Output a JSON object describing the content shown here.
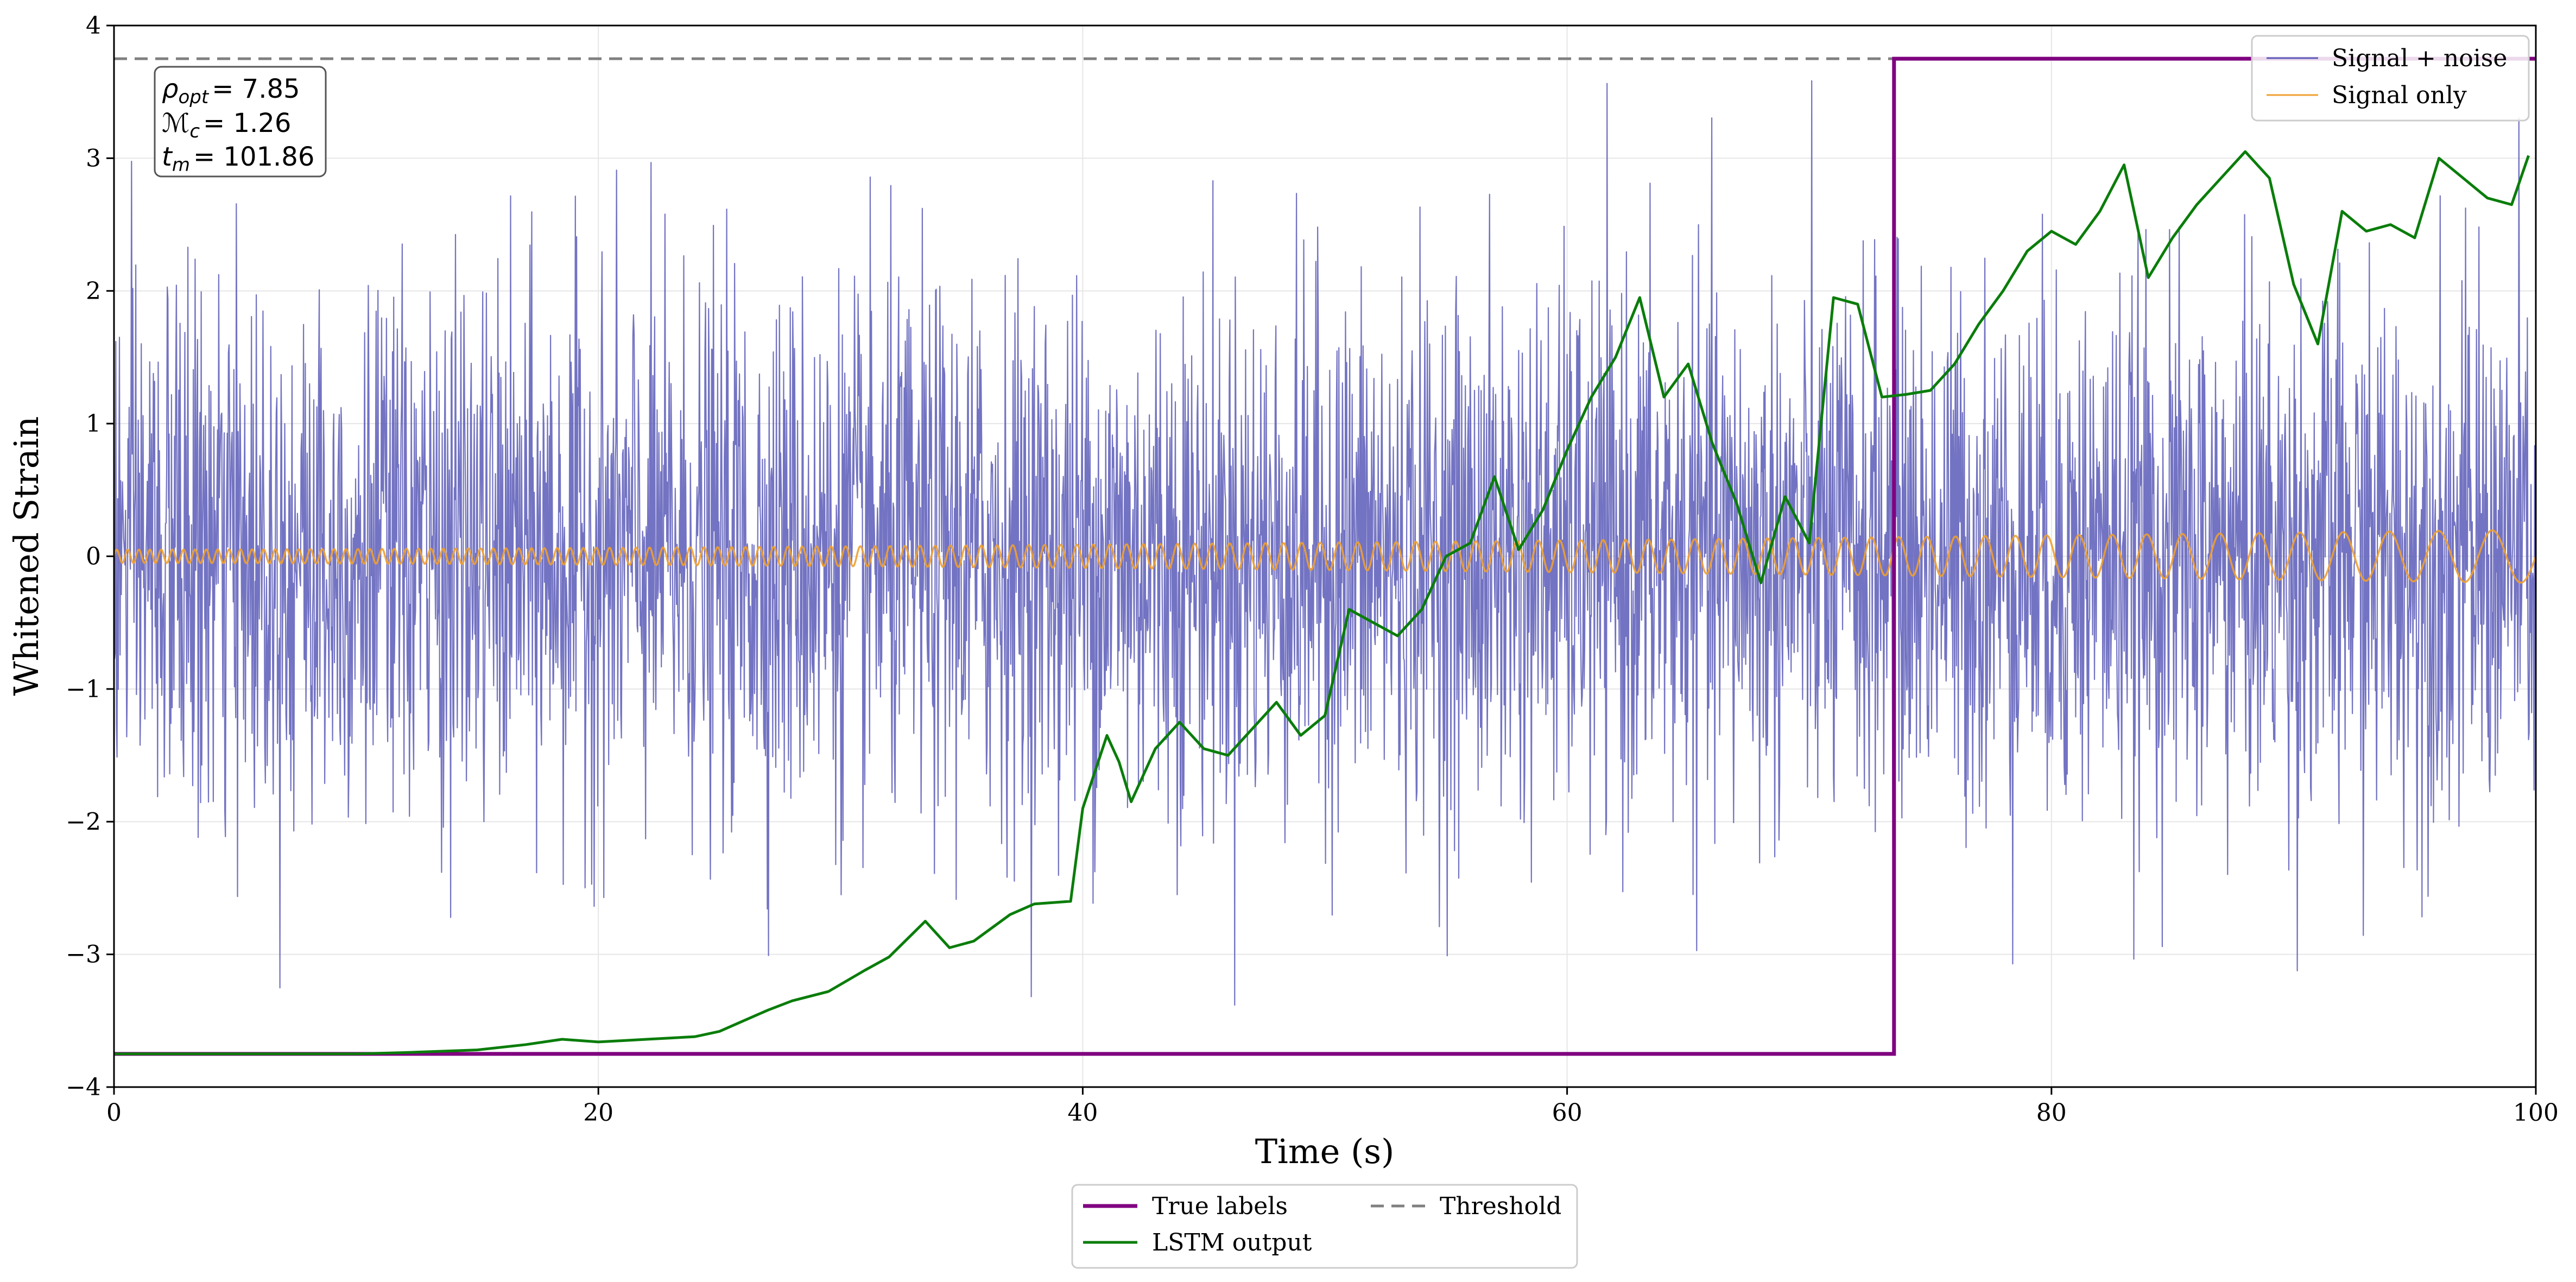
{
  "chart_data": {
    "type": "line",
    "title": "",
    "xlabel": "Time (s)",
    "ylabel": "Whitened Strain",
    "xlim": [
      0,
      100
    ],
    "ylim": [
      -4,
      4
    ],
    "x_ticks": [
      0,
      20,
      40,
      60,
      80,
      100
    ],
    "y_ticks": [
      -4,
      -3,
      -2,
      -1,
      0,
      1,
      2,
      3,
      4
    ],
    "x_tick_labels": [
      "0",
      "20",
      "40",
      "60",
      "80",
      "100"
    ],
    "y_tick_labels": [
      "−4",
      "−3",
      "−2",
      "−1",
      "0",
      "1",
      "2",
      "3",
      "4"
    ],
    "grid": true,
    "annotation": {
      "rho_label": "ρ",
      "rho_sub": "opt",
      "rho_value": "= 7.85",
      "mc_label": "ℳ",
      "mc_sub": "c",
      "mc_value": "= 1.26",
      "tm_label": "t",
      "tm_sub": "m",
      "tm_value": "= 101.86"
    },
    "legend_top_right": [
      "Signal + noise",
      "Signal only"
    ],
    "legend_bottom": [
      "True labels",
      "LSTM output",
      "Threshold"
    ],
    "colors": {
      "signal_noise": "#5b5bb8",
      "signal_only": "#f0a030",
      "true_labels": "#800080",
      "lstm": "#0a7d0a",
      "threshold": "#808080"
    },
    "series": [
      {
        "name": "Signal + noise",
        "kind": "noise",
        "amplitude_std": 1.0,
        "x_range": [
          0,
          100
        ],
        "values_summary": "Gaussian-like noise around 0, mostly between -3 and 3, occasional spikes to ±4"
      },
      {
        "name": "Signal only",
        "kind": "chirp",
        "x_range": [
          0,
          100
        ],
        "amplitude_start": 0.05,
        "amplitude_end": 0.2,
        "values_summary": "small oscillating chirp around 0 with growing amplitude"
      },
      {
        "name": "True labels",
        "kind": "step",
        "x": [
          0,
          73.5,
          73.5,
          100
        ],
        "values": [
          -3.75,
          -3.75,
          3.75,
          3.75
        ]
      },
      {
        "name": "LSTM output",
        "kind": "line",
        "x": [
          0,
          5,
          10,
          12,
          15,
          17,
          18.5,
          20,
          21,
          22,
          23,
          24,
          25,
          26,
          27,
          28,
          29.5,
          31,
          32,
          33.5,
          34.5,
          35.5,
          37,
          38,
          39.5,
          40,
          41,
          41.5,
          42,
          43,
          44,
          45,
          46,
          47,
          48,
          49,
          50,
          51,
          52,
          53,
          54,
          55,
          56,
          57,
          58,
          59,
          60,
          61,
          62,
          63,
          64,
          65,
          66,
          67,
          68,
          69,
          70,
          71,
          72,
          73,
          74,
          75,
          76,
          77,
          78,
          79,
          80,
          81,
          82,
          83,
          84,
          85,
          86,
          87,
          88,
          89,
          90,
          91,
          92,
          93,
          94,
          95,
          96,
          97,
          98,
          99,
          99.7
        ],
        "values": [
          -3.75,
          -3.75,
          -3.75,
          -3.74,
          -3.72,
          -3.68,
          -3.64,
          -3.66,
          -3.65,
          -3.64,
          -3.63,
          -3.62,
          -3.58,
          -3.5,
          -3.42,
          -3.35,
          -3.28,
          -3.12,
          -3.02,
          -2.75,
          -2.95,
          -2.9,
          -2.7,
          -2.62,
          -2.6,
          -1.9,
          -1.35,
          -1.55,
          -1.85,
          -1.45,
          -1.25,
          -1.45,
          -1.5,
          -1.3,
          -1.1,
          -1.35,
          -1.2,
          -0.4,
          -0.5,
          -0.6,
          -0.4,
          0.0,
          0.1,
          0.6,
          0.05,
          0.35,
          0.8,
          1.2,
          1.5,
          1.95,
          1.2,
          1.45,
          0.85,
          0.4,
          -0.2,
          0.45,
          0.1,
          1.95,
          1.9,
          1.2,
          1.22,
          1.25,
          1.45,
          1.75,
          2.0,
          2.3,
          2.45,
          2.35,
          2.6,
          2.95,
          2.1,
          2.4,
          2.65,
          2.85,
          3.05,
          2.85,
          2.05,
          1.6,
          2.6,
          2.45,
          2.5,
          2.4,
          3.0,
          2.85,
          2.7,
          2.65,
          3.02
        ]
      },
      {
        "name": "Threshold",
        "kind": "hline",
        "value": 3.75
      }
    ]
  }
}
